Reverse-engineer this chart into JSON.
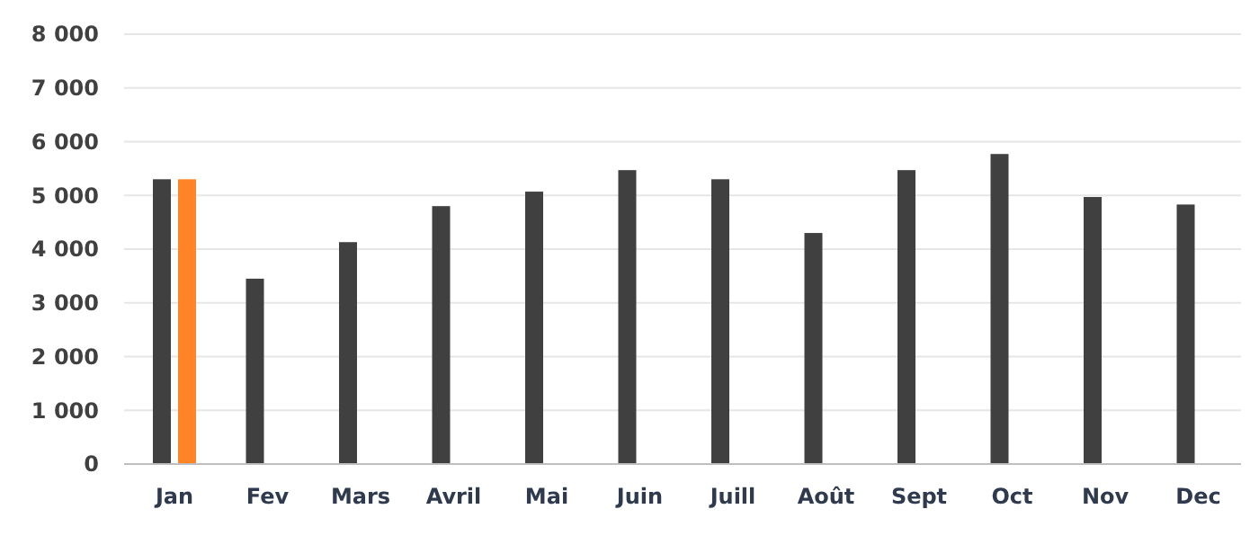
{
  "chart_data": {
    "type": "bar",
    "categories": [
      "Jan",
      "Fev",
      "Mars",
      "Avril",
      "Mai",
      "Juin",
      "Juill",
      "Août",
      "Sept",
      "Oct",
      "Nov",
      "Dec"
    ],
    "series": [
      {
        "color": "#404040",
        "values": [
          5300,
          3450,
          4130,
          4800,
          5070,
          5470,
          5300,
          4300,
          5470,
          5770,
          4970,
          4830
        ]
      },
      {
        "color": "#ff8426",
        "values": [
          5300,
          null,
          null,
          null,
          null,
          null,
          null,
          null,
          null,
          null,
          null,
          null
        ]
      }
    ],
    "ylim": [
      0,
      8000
    ],
    "yticks": [
      0,
      {
        "value": 1000,
        "label": "1 000"
      },
      {
        "value": 2000,
        "label": "2 000"
      },
      {
        "value": 3000,
        "label": "3 000"
      },
      {
        "value": 4000,
        "label": "4 000"
      },
      {
        "value": 5000,
        "label": "5 000"
      },
      {
        "value": 6000,
        "label": "6 000"
      },
      {
        "value": 7000,
        "label": "7 000"
      },
      {
        "value": 8000,
        "label": "8 000"
      }
    ],
    "grid": "y"
  }
}
